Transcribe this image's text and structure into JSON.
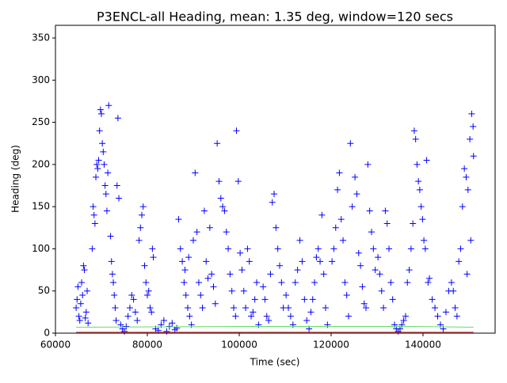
{
  "chart_data": {
    "type": "scatter",
    "title": "P3ENCL-all Heading, mean: 1.35 deg, window=120 secs",
    "xlabel": "Time (sec)",
    "ylabel": "Heading (deg)",
    "xlim": [
      60000,
      155700
    ],
    "ylim": [
      0,
      365
    ],
    "xticks": [
      60000,
      80000,
      100000,
      120000,
      140000
    ],
    "yticks": [
      0,
      50,
      100,
      150,
      200,
      250,
      300,
      350
    ],
    "series": [
      {
        "mode": "markers",
        "color": "#0000ff",
        "x": [
          64500,
          64700,
          64900,
          65100,
          65300,
          65500,
          65700,
          65900,
          66100,
          66300,
          66500,
          66700,
          66900,
          67100,
          68000,
          68200,
          68400,
          68600,
          68800,
          69000,
          69200,
          69400,
          69600,
          69800,
          70000,
          70200,
          70400,
          70600,
          70800,
          71000,
          71200,
          71400,
          71600,
          72000,
          72200,
          72400,
          72600,
          72800,
          73000,
          73200,
          73400,
          73600,
          73800,
          74200,
          74600,
          75000,
          75400,
          75800,
          76200,
          76600,
          77000,
          77400,
          77800,
          78200,
          78500,
          78800,
          79100,
          79400,
          79700,
          80000,
          80300,
          80600,
          80900,
          81100,
          81300,
          81800,
          82400,
          83000,
          83600,
          84200,
          84800,
          85400,
          86000,
          86400,
          86800,
          87200,
          87600,
          88000,
          88400,
          88800,
          89200,
          89600,
          90000,
          89000,
          88200,
          90400,
          90800,
          91200,
          91600,
          92000,
          92400,
          92800,
          93200,
          93600,
          94000,
          94400,
          94800,
          95200,
          95600,
          96000,
          96400,
          96800,
          97200,
          97600,
          98000,
          98400,
          98800,
          99200,
          99400,
          99800,
          100200,
          100600,
          101000,
          101400,
          101800,
          102200,
          102600,
          103000,
          103400,
          103800,
          104200,
          105200,
          105600,
          106000,
          106400,
          106800,
          107200,
          107600,
          108000,
          108400,
          108800,
          109200,
          109600,
          110200,
          110700,
          111200,
          111700,
          112200,
          112700,
          113200,
          113700,
          114200,
          114700,
          115200,
          115600,
          116000,
          116400,
          116800,
          117200,
          117600,
          118000,
          118400,
          118800,
          119200,
          120200,
          120600,
          121000,
          121400,
          121800,
          122200,
          122600,
          123000,
          123400,
          123800,
          124200,
          124600,
          125200,
          125600,
          126000,
          126400,
          126800,
          127200,
          127600,
          128000,
          128400,
          128800,
          129200,
          129600,
          130200,
          130600,
          131000,
          131400,
          131800,
          132200,
          132600,
          133000,
          133400,
          133800,
          134200,
          134600,
          135000,
          135400,
          135800,
          136200,
          136600,
          137000,
          137400,
          137800,
          138100,
          138400,
          138700,
          139000,
          139300,
          139600,
          139900,
          140200,
          140500,
          140800,
          141100,
          141400,
          142000,
          142600,
          143200,
          143800,
          144400,
          145000,
          145600,
          146200,
          146600,
          147000,
          147400,
          147800,
          148200,
          148600,
          149000,
          149400,
          149800,
          150200,
          150600,
          150900,
          151000,
          150400,
          149600
        ],
        "values": [
          30,
          40,
          55,
          20,
          15,
          35,
          60,
          45,
          80,
          75,
          18,
          25,
          50,
          12,
          100,
          150,
          140,
          130,
          185,
          200,
          195,
          205,
          240,
          265,
          260,
          225,
          215,
          200,
          175,
          165,
          145,
          190,
          270,
          115,
          85,
          70,
          60,
          45,
          30,
          15,
          175,
          255,
          160,
          10,
          5,
          2,
          8,
          20,
          30,
          45,
          40,
          25,
          15,
          110,
          125,
          140,
          150,
          80,
          60,
          45,
          50,
          30,
          25,
          100,
          90,
          5,
          3,
          10,
          15,
          2,
          8,
          12,
          4,
          6,
          135,
          100,
          85,
          60,
          45,
          30,
          20,
          10,
          110,
          90,
          75,
          190,
          120,
          60,
          45,
          30,
          145,
          85,
          65,
          125,
          70,
          55,
          35,
          225,
          180,
          160,
          150,
          145,
          120,
          100,
          70,
          50,
          30,
          20,
          240,
          180,
          95,
          75,
          50,
          30,
          100,
          85,
          20,
          25,
          40,
          60,
          10,
          55,
          40,
          20,
          15,
          70,
          155,
          165,
          125,
          100,
          80,
          60,
          30,
          45,
          30,
          20,
          10,
          60,
          75,
          110,
          85,
          40,
          15,
          5,
          25,
          40,
          60,
          90,
          100,
          85,
          140,
          70,
          30,
          10,
          85,
          100,
          125,
          170,
          190,
          135,
          110,
          60,
          45,
          20,
          225,
          150,
          185,
          165,
          95,
          80,
          55,
          35,
          30,
          200,
          145,
          120,
          100,
          75,
          90,
          70,
          50,
          30,
          145,
          130,
          100,
          60,
          40,
          10,
          5,
          2,
          5,
          10,
          15,
          20,
          60,
          75,
          100,
          130,
          240,
          230,
          200,
          180,
          170,
          150,
          135,
          110,
          100,
          205,
          60,
          65,
          40,
          30,
          20,
          10,
          5,
          25,
          50,
          60,
          50,
          30,
          20,
          85,
          100,
          150,
          195,
          185,
          170,
          230,
          260,
          245,
          210,
          110,
          70
        ]
      },
      {
        "mode": "lines",
        "color": "#66dd66",
        "x": [
          64500,
          100000,
          138000,
          151000
        ],
        "values": [
          7,
          8,
          8,
          7
        ]
      },
      {
        "mode": "lines",
        "color": "#dd2222",
        "x": [
          64500,
          151000
        ],
        "values": [
          1,
          1
        ]
      }
    ]
  }
}
